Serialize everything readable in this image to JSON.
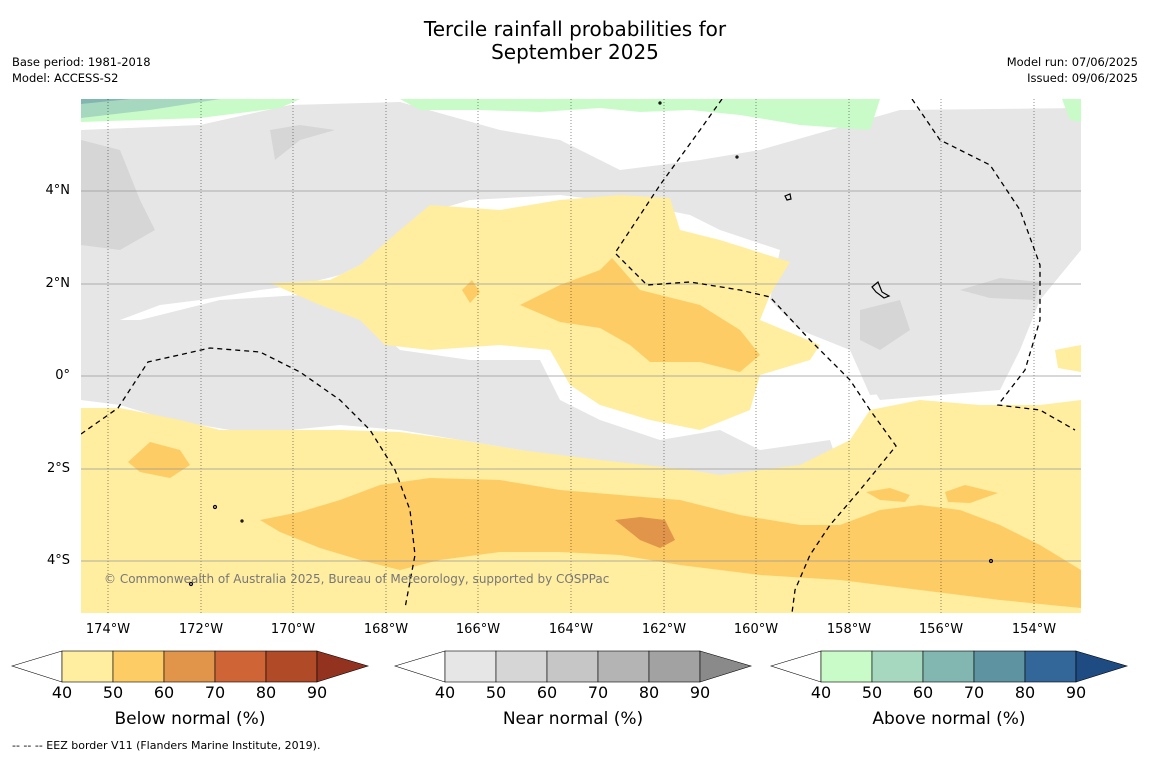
{
  "title_line1": "Tercile rainfall probabilities for",
  "title_line2": "September 2025",
  "meta_left": [
    "Base period: 1981-2018",
    "Model: ACCESS-S2"
  ],
  "meta_right": [
    "Model run: 07/06/2025",
    "Issued: 09/06/2025"
  ],
  "lat_labels": [
    "4°N",
    "2°N",
    "0°",
    "2°S",
    "4°S"
  ],
  "lon_labels": [
    "174°W",
    "172°W",
    "170°W",
    "168°W",
    "166°W",
    "164°W",
    "162°W",
    "160°W",
    "158°W",
    "156°W",
    "154°W"
  ],
  "copyright": "© Commonwealth of Australia 2025, Bureau of Meteorology, supported by COSPPac",
  "colorbars": [
    {
      "title": "Below normal (%)",
      "ticks": [
        "40",
        "50",
        "60",
        "70",
        "80",
        "90"
      ],
      "colors": [
        "#ffffff",
        "#ffeda0",
        "#fecc65",
        "#e0954a",
        "#cf6536",
        "#b04a27",
        "#93321f"
      ]
    },
    {
      "title": "Near normal (%)",
      "ticks": [
        "40",
        "50",
        "60",
        "70",
        "80",
        "90"
      ],
      "colors": [
        "#ffffff",
        "#e6e6e6",
        "#d6d6d6",
        "#c6c6c6",
        "#b4b4b4",
        "#a2a2a2",
        "#8a8a8a"
      ]
    },
    {
      "title": "Above normal (%)",
      "ticks": [
        "40",
        "50",
        "60",
        "70",
        "80",
        "90"
      ],
      "colors": [
        "#ffffff",
        "#c9fbc8",
        "#a5d8bf",
        "#82b6b0",
        "#5e94a2",
        "#336699",
        "#1d4b82"
      ]
    }
  ],
  "footnote": "--  --  -- EEZ border V11 (Flanders Marine Institute, 2019)."
}
